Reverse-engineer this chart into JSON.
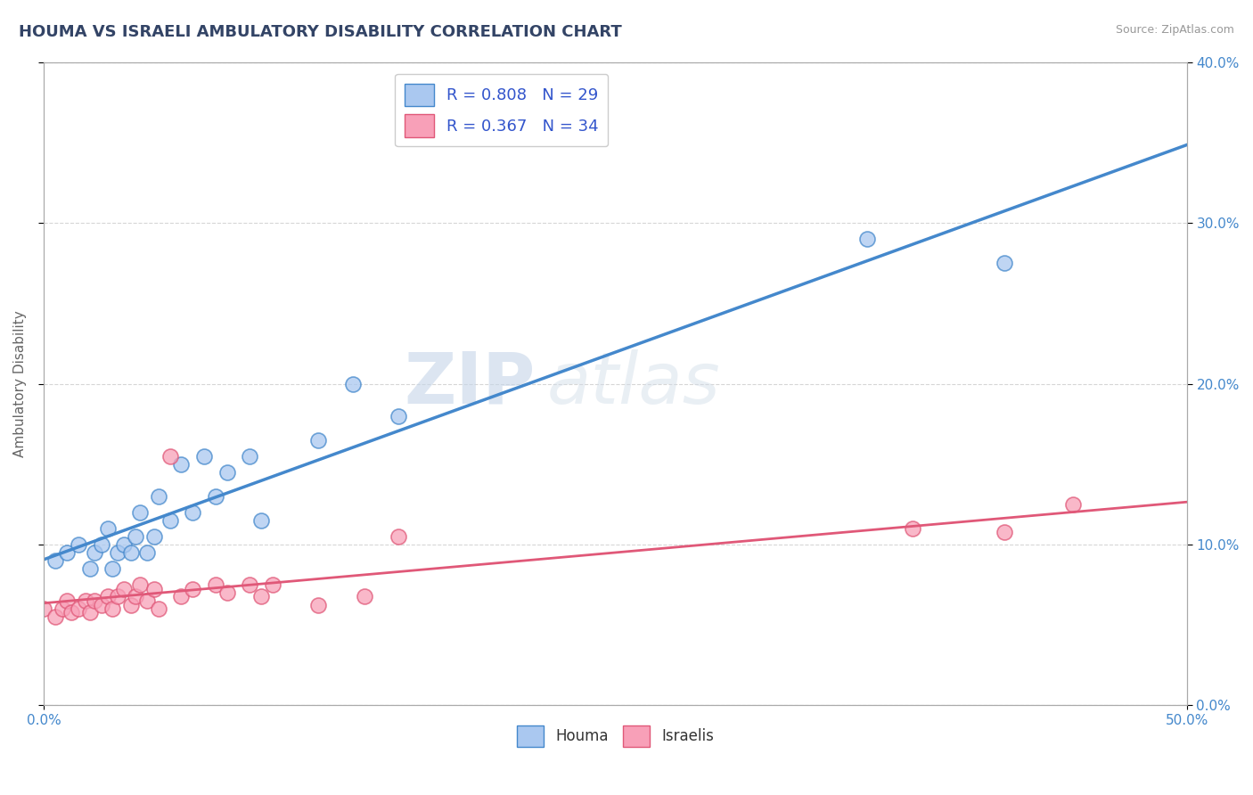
{
  "title": "HOUMA VS ISRAELI AMBULATORY DISABILITY CORRELATION CHART",
  "source": "Source: ZipAtlas.com",
  "ylabel": "Ambulatory Disability",
  "xlim": [
    0.0,
    0.5
  ],
  "ylim": [
    -0.02,
    0.42
  ],
  "plot_ylim": [
    0.0,
    0.4
  ],
  "xticks_shown": [
    0.0,
    0.5
  ],
  "yticks": [
    0.0,
    0.1,
    0.2,
    0.3,
    0.4
  ],
  "houma_R": 0.808,
  "houma_N": 29,
  "israeli_R": 0.367,
  "israeli_N": 34,
  "houma_color": "#aac8f0",
  "houma_line_color": "#4488cc",
  "israeli_color": "#f8a0b8",
  "israeli_line_color": "#e05878",
  "legend_text_color": "#3355cc",
  "watermark": "ZIPatlas",
  "houma_x": [
    0.005,
    0.01,
    0.015,
    0.02,
    0.022,
    0.025,
    0.028,
    0.03,
    0.032,
    0.035,
    0.038,
    0.04,
    0.042,
    0.045,
    0.048,
    0.05,
    0.055,
    0.06,
    0.065,
    0.07,
    0.075,
    0.08,
    0.09,
    0.095,
    0.12,
    0.135,
    0.155,
    0.36,
    0.42
  ],
  "houma_y": [
    0.09,
    0.095,
    0.1,
    0.085,
    0.095,
    0.1,
    0.11,
    0.085,
    0.095,
    0.1,
    0.095,
    0.105,
    0.12,
    0.095,
    0.105,
    0.13,
    0.115,
    0.15,
    0.12,
    0.155,
    0.13,
    0.145,
    0.155,
    0.115,
    0.165,
    0.2,
    0.18,
    0.29,
    0.275
  ],
  "israeli_x": [
    0.0,
    0.005,
    0.008,
    0.01,
    0.012,
    0.015,
    0.018,
    0.02,
    0.022,
    0.025,
    0.028,
    0.03,
    0.032,
    0.035,
    0.038,
    0.04,
    0.042,
    0.045,
    0.048,
    0.05,
    0.055,
    0.06,
    0.065,
    0.075,
    0.08,
    0.09,
    0.095,
    0.1,
    0.12,
    0.14,
    0.155,
    0.38,
    0.42,
    0.45
  ],
  "israeli_y": [
    0.06,
    0.055,
    0.06,
    0.065,
    0.058,
    0.06,
    0.065,
    0.058,
    0.065,
    0.062,
    0.068,
    0.06,
    0.068,
    0.072,
    0.062,
    0.068,
    0.075,
    0.065,
    0.072,
    0.06,
    0.155,
    0.068,
    0.072,
    0.075,
    0.07,
    0.075,
    0.068,
    0.075,
    0.062,
    0.068,
    0.105,
    0.11,
    0.108,
    0.125
  ],
  "background_color": "#ffffff",
  "grid_color": "#cccccc",
  "title_color": "#334466",
  "title_fontsize": 13,
  "axis_label_color": "#666666"
}
